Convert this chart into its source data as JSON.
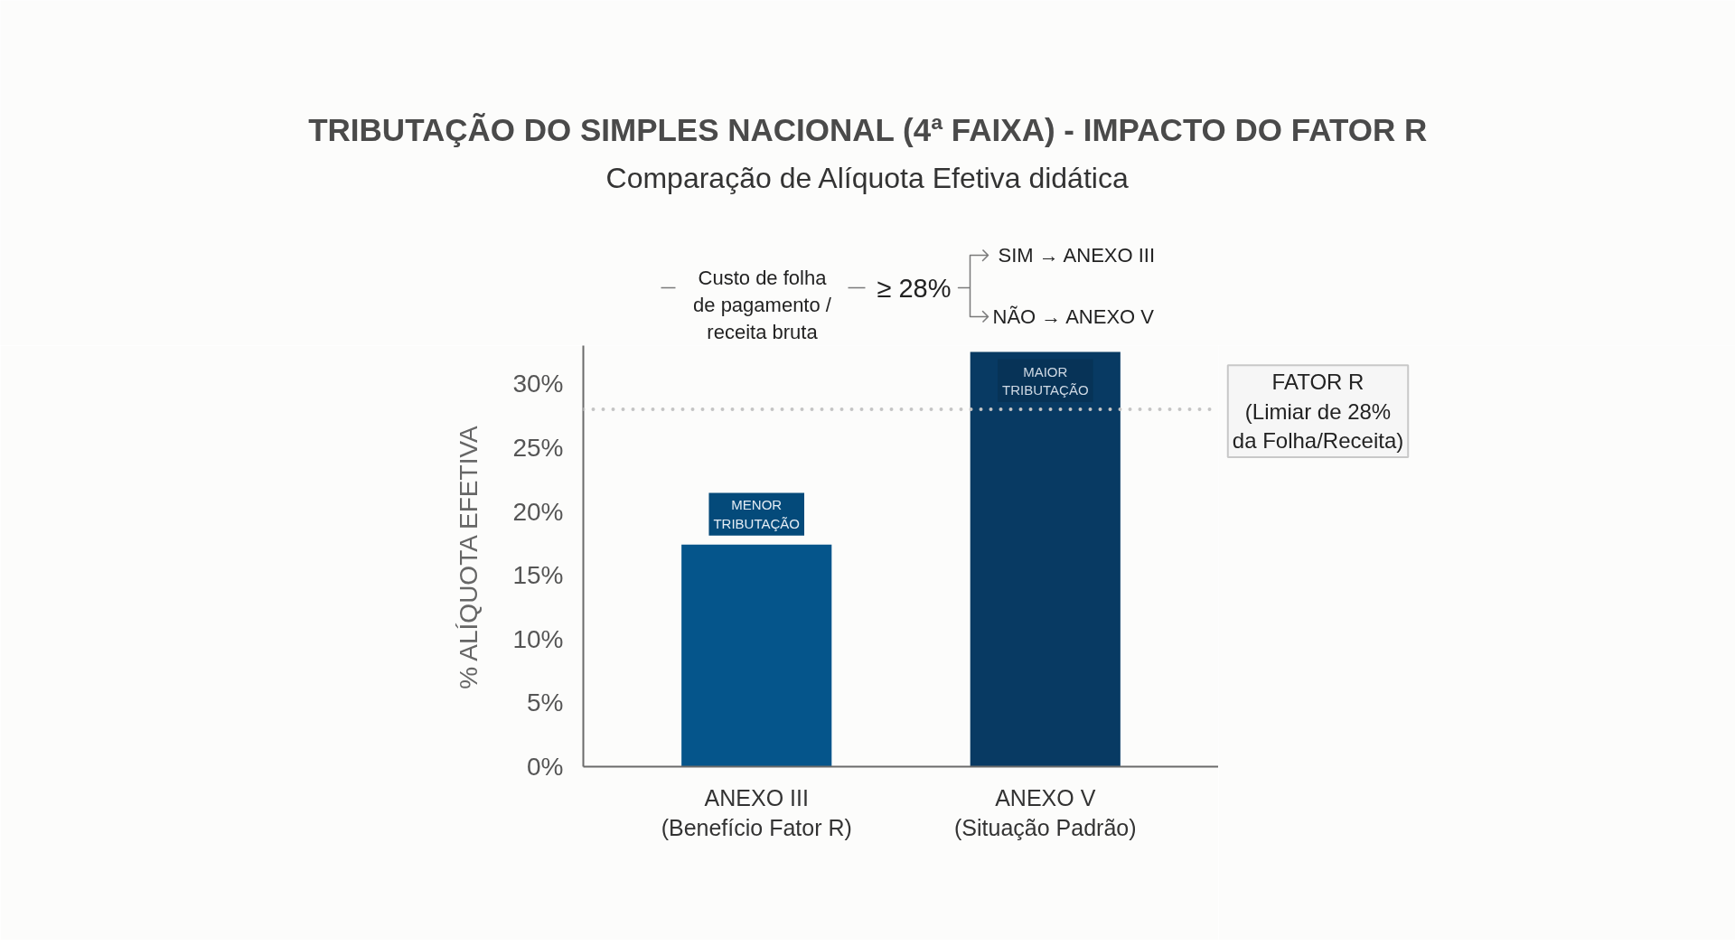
{
  "chart_data": {
    "type": "bar",
    "title": "TRIBUTAÇÃO DO SIMPLES NACIONAL (4ª FAIXA) - IMPACTO DO FATOR R",
    "subtitle": "Comparação de Alíquota Efetiva didática",
    "ylabel": "% ALÍQUOTA EFETIVA",
    "categories": [
      "ANEXO III\n(Benefício Fator R)",
      "ANEXO V\n(Situação Padrão)"
    ],
    "values": [
      17.4,
      32.5
    ],
    "colors": [
      "#05558b",
      "#083a63"
    ],
    "ylim": [
      0,
      33
    ],
    "yticks": [
      {
        "value": 0,
        "label": "0%"
      },
      {
        "value": 5,
        "label": "5%"
      },
      {
        "value": 10,
        "label": "10%"
      },
      {
        "value": 15,
        "label": "15%"
      },
      {
        "value": 20,
        "label": "20%"
      },
      {
        "value": 25,
        "label": "25%"
      },
      {
        "value": 30,
        "label": "30%"
      }
    ],
    "ref_lines": [
      {
        "axis": "y",
        "value": 28,
        "label": "FATOR R\n(Limiar de 28%\nda Folha/Receita)",
        "color": "#c4c4c4",
        "line_style": "dotted"
      }
    ],
    "annotations": [
      "Custo de folha\nde pagamento /\nreceita bruta",
      "≥ 28%",
      "SIM → ANEXO III",
      "NÃO → ANEXO V",
      {
        "text": "MENOR\nTRIBUTAÇÃO",
        "x": "ANEXO III\n(Benefício Fator R)",
        "y": 17.4
      },
      {
        "text": "MAIOR\nTRIBUTAÇÃO",
        "x": "ANEXO V\n(Situação Padrão)",
        "y": 32.5
      }
    ]
  }
}
